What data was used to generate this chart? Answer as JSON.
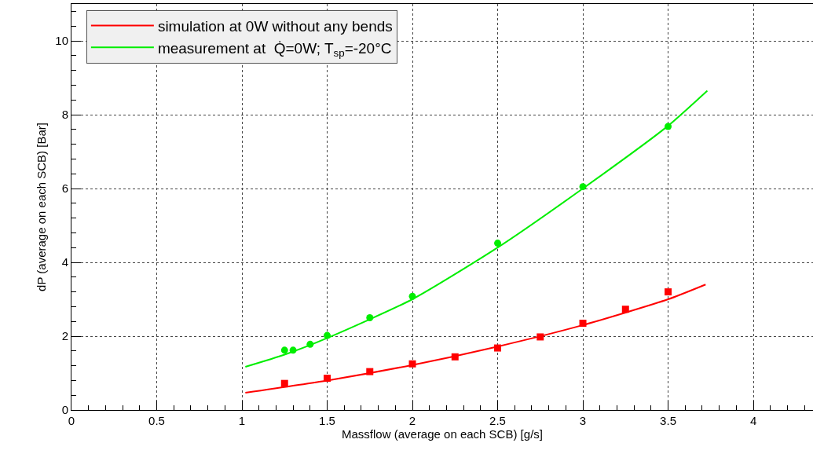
{
  "chart_data": {
    "type": "line",
    "xlabel": "Massflow (average on each SCB) [g/s]",
    "ylabel": "dP (average on each SCB) [Bar]",
    "xlim": [
      0,
      4.35
    ],
    "xticks": [
      0,
      0.5,
      1,
      1.5,
      2,
      2.5,
      3,
      3.5,
      4
    ],
    "ylim": [
      0,
      11
    ],
    "yticks": [
      0,
      2,
      4,
      6,
      8,
      10
    ],
    "grid": true,
    "legend": "top left",
    "line_style": "solid",
    "series": [
      {
        "name": "simulation at 0W without any bends",
        "color": "#ff0000",
        "x": [
          1.02,
          1.5,
          2,
          2.5,
          3,
          3.5,
          3.72
        ],
        "values": [
          0.47,
          0.8,
          1.22,
          1.72,
          2.3,
          3.0,
          3.4
        ]
      },
      {
        "name": "measurement at  Q̇=0W; T$_{sp}$=-20°C",
        "color": "#00ee00",
        "x": [
          1.02,
          1.25,
          1.5,
          2,
          2.5,
          3,
          3.5,
          3.73
        ],
        "values": [
          1.17,
          1.5,
          1.95,
          3.0,
          4.4,
          6.0,
          7.7,
          8.65
        ]
      },
      {
        "type": "scatter",
        "marker": "square",
        "color": "#ff0000",
        "x": [
          1.25,
          1.5,
          1.75,
          2,
          2.25,
          2.5,
          2.75,
          3,
          3.25,
          3.5
        ],
        "values": [
          0.72,
          0.86,
          1.04,
          1.25,
          1.44,
          1.68,
          1.98,
          2.35,
          2.73,
          3.2
        ]
      },
      {
        "type": "scatter",
        "marker": "circle",
        "color": "#00ee00",
        "x": [
          1.25,
          1.3,
          1.4,
          1.5,
          1.75,
          2,
          2.5,
          3,
          3.5
        ],
        "values": [
          1.62,
          1.62,
          1.78,
          2.02,
          2.5,
          3.08,
          4.52,
          6.05,
          7.68
        ]
      }
    ]
  }
}
